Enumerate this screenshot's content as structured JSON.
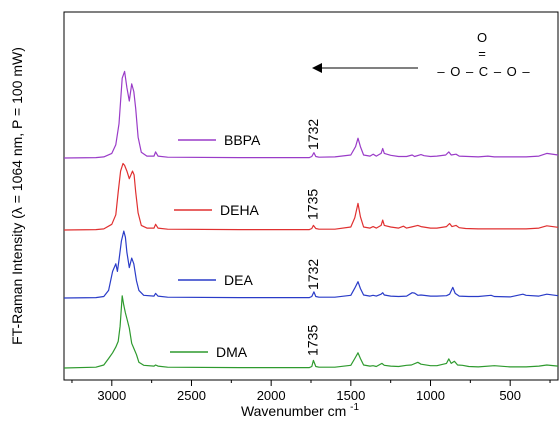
{
  "chart_data": {
    "type": "line",
    "xlabel": "Wavenumber cm",
    "xlabel_sup": "-1",
    "ylabel": "FT-Raman Intensity (λ = 1064 nm, P = 100 mW)",
    "xlim": [
      3300,
      200
    ],
    "x_reversed": true,
    "x_ticks": [
      3000,
      2500,
      2000,
      1500,
      1000,
      500
    ],
    "x_tick_labels": [
      "3000",
      "2500",
      "2000",
      "1500",
      "1000",
      "500"
    ],
    "y_tick_labels_shown": false,
    "grid": false,
    "legend": "inline",
    "colors": {
      "BBPA": "#9a3cc8",
      "DEHA": "#e03030",
      "DEA": "#2a3cc8",
      "DMA": "#2e9a2e"
    },
    "series": [
      {
        "name": "BBPA",
        "offset": 3,
        "points": [
          [
            3300,
            0
          ],
          [
            3100,
            0.01
          ],
          [
            3050,
            0.03
          ],
          [
            3000,
            0.12
          ],
          [
            2975,
            0.35
          ],
          [
            2955,
            0.9
          ],
          [
            2935,
            2.1
          ],
          [
            2920,
            2.28
          ],
          [
            2905,
            1.85
          ],
          [
            2890,
            1.5
          ],
          [
            2875,
            1.95
          ],
          [
            2862,
            1.75
          ],
          [
            2850,
            1.3
          ],
          [
            2835,
            0.55
          ],
          [
            2815,
            0.15
          ],
          [
            2780,
            0.05
          ],
          [
            2735,
            0.05
          ],
          [
            2725,
            0.16
          ],
          [
            2710,
            0.05
          ],
          [
            2650,
            0.02
          ],
          [
            2200,
            0.01
          ],
          [
            1760,
            0.01
          ],
          [
            1745,
            0.04
          ],
          [
            1732,
            0.14
          ],
          [
            1720,
            0.04
          ],
          [
            1700,
            0.02
          ],
          [
            1600,
            0.03
          ],
          [
            1500,
            0.08
          ],
          [
            1470,
            0.3
          ],
          [
            1455,
            0.52
          ],
          [
            1440,
            0.3
          ],
          [
            1420,
            0.08
          ],
          [
            1380,
            0.05
          ],
          [
            1360,
            0.1
          ],
          [
            1340,
            0.05
          ],
          [
            1310,
            0.12
          ],
          [
            1300,
            0.25
          ],
          [
            1290,
            0.12
          ],
          [
            1250,
            0.07
          ],
          [
            1200,
            0.04
          ],
          [
            1150,
            0.04
          ],
          [
            1115,
            0.08
          ],
          [
            1100,
            0.04
          ],
          [
            1060,
            0.09
          ],
          [
            1040,
            0.06
          ],
          [
            1000,
            0.04
          ],
          [
            960,
            0.05
          ],
          [
            905,
            0.08
          ],
          [
            885,
            0.16
          ],
          [
            870,
            0.08
          ],
          [
            840,
            0.1
          ],
          [
            820,
            0.05
          ],
          [
            760,
            0.04
          ],
          [
            700,
            0.03
          ],
          [
            640,
            0.05
          ],
          [
            600,
            0.03
          ],
          [
            400,
            0.03
          ],
          [
            320,
            0.05
          ],
          [
            270,
            0.12
          ],
          [
            200,
            0.08
          ]
        ]
      },
      {
        "name": "DEHA",
        "offset": 2,
        "points": [
          [
            3300,
            0
          ],
          [
            3100,
            0.01
          ],
          [
            3050,
            0.03
          ],
          [
            3000,
            0.15
          ],
          [
            2975,
            0.4
          ],
          [
            2960,
            1.0
          ],
          [
            2945,
            1.55
          ],
          [
            2930,
            1.75
          ],
          [
            2920,
            1.7
          ],
          [
            2905,
            1.55
          ],
          [
            2890,
            1.35
          ],
          [
            2870,
            1.55
          ],
          [
            2860,
            1.45
          ],
          [
            2850,
            1.0
          ],
          [
            2835,
            0.45
          ],
          [
            2815,
            0.12
          ],
          [
            2780,
            0.05
          ],
          [
            2735,
            0.05
          ],
          [
            2725,
            0.15
          ],
          [
            2710,
            0.05
          ],
          [
            2650,
            0.02
          ],
          [
            2200,
            0.01
          ],
          [
            1760,
            0.01
          ],
          [
            1745,
            0.04
          ],
          [
            1735,
            0.12
          ],
          [
            1720,
            0.04
          ],
          [
            1700,
            0.02
          ],
          [
            1600,
            0.02
          ],
          [
            1500,
            0.08
          ],
          [
            1475,
            0.32
          ],
          [
            1455,
            0.7
          ],
          [
            1440,
            0.35
          ],
          [
            1420,
            0.08
          ],
          [
            1380,
            0.05
          ],
          [
            1360,
            0.09
          ],
          [
            1340,
            0.05
          ],
          [
            1310,
            0.12
          ],
          [
            1300,
            0.26
          ],
          [
            1290,
            0.12
          ],
          [
            1250,
            0.08
          ],
          [
            1200,
            0.05
          ],
          [
            1170,
            0.1
          ],
          [
            1150,
            0.05
          ],
          [
            1120,
            0.08
          ],
          [
            1080,
            0.12
          ],
          [
            1060,
            0.09
          ],
          [
            1000,
            0.05
          ],
          [
            960,
            0.05
          ],
          [
            900,
            0.09
          ],
          [
            880,
            0.17
          ],
          [
            865,
            0.09
          ],
          [
            840,
            0.12
          ],
          [
            820,
            0.06
          ],
          [
            780,
            0.04
          ],
          [
            700,
            0.03
          ],
          [
            600,
            0.03
          ],
          [
            400,
            0.03
          ],
          [
            320,
            0.05
          ],
          [
            270,
            0.11
          ],
          [
            200,
            0.07
          ]
        ]
      },
      {
        "name": "DEA",
        "offset": 1,
        "points": [
          [
            3300,
            0
          ],
          [
            3100,
            0.01
          ],
          [
            3050,
            0.04
          ],
          [
            3020,
            0.2
          ],
          [
            2995,
            0.7
          ],
          [
            2975,
            0.9
          ],
          [
            2965,
            0.7
          ],
          [
            2955,
            1.0
          ],
          [
            2940,
            1.5
          ],
          [
            2925,
            1.76
          ],
          [
            2915,
            1.6
          ],
          [
            2905,
            1.2
          ],
          [
            2890,
            0.8
          ],
          [
            2875,
            1.05
          ],
          [
            2862,
            0.9
          ],
          [
            2845,
            0.45
          ],
          [
            2830,
            0.2
          ],
          [
            2800,
            0.07
          ],
          [
            2735,
            0.05
          ],
          [
            2725,
            0.12
          ],
          [
            2710,
            0.05
          ],
          [
            2650,
            0.02
          ],
          [
            2200,
            0.01
          ],
          [
            1760,
            0.01
          ],
          [
            1745,
            0.04
          ],
          [
            1732,
            0.16
          ],
          [
            1720,
            0.04
          ],
          [
            1700,
            0.02
          ],
          [
            1600,
            0.02
          ],
          [
            1500,
            0.07
          ],
          [
            1475,
            0.26
          ],
          [
            1455,
            0.43
          ],
          [
            1440,
            0.25
          ],
          [
            1420,
            0.08
          ],
          [
            1380,
            0.05
          ],
          [
            1360,
            0.07
          ],
          [
            1340,
            0.05
          ],
          [
            1310,
            0.1
          ],
          [
            1300,
            0.14
          ],
          [
            1290,
            0.08
          ],
          [
            1250,
            0.05
          ],
          [
            1200,
            0.04
          ],
          [
            1150,
            0.05
          ],
          [
            1115,
            0.14
          ],
          [
            1100,
            0.13
          ],
          [
            1080,
            0.07
          ],
          [
            1060,
            0.08
          ],
          [
            1000,
            0.05
          ],
          [
            960,
            0.05
          ],
          [
            900,
            0.06
          ],
          [
            880,
            0.1
          ],
          [
            860,
            0.28
          ],
          [
            845,
            0.12
          ],
          [
            820,
            0.05
          ],
          [
            760,
            0.04
          ],
          [
            700,
            0.04
          ],
          [
            620,
            0.07
          ],
          [
            600,
            0.04
          ],
          [
            500,
            0.03
          ],
          [
            420,
            0.1
          ],
          [
            400,
            0.07
          ],
          [
            320,
            0.05
          ],
          [
            270,
            0.1
          ],
          [
            200,
            0.06
          ]
        ]
      },
      {
        "name": "DMA",
        "offset": 0,
        "points": [
          [
            3300,
            0
          ],
          [
            3100,
            0.02
          ],
          [
            3050,
            0.08
          ],
          [
            3020,
            0.25
          ],
          [
            2995,
            0.4
          ],
          [
            2975,
            0.55
          ],
          [
            2960,
            0.7
          ],
          [
            2948,
            1.1
          ],
          [
            2935,
            1.9
          ],
          [
            2925,
            1.65
          ],
          [
            2915,
            1.45
          ],
          [
            2905,
            1.3
          ],
          [
            2890,
            1.05
          ],
          [
            2875,
            0.65
          ],
          [
            2860,
            0.5
          ],
          [
            2845,
            0.35
          ],
          [
            2830,
            0.15
          ],
          [
            2800,
            0.07
          ],
          [
            2735,
            0.05
          ],
          [
            2725,
            0.08
          ],
          [
            2710,
            0.05
          ],
          [
            2650,
            0.02
          ],
          [
            2200,
            0.01
          ],
          [
            1760,
            0.01
          ],
          [
            1745,
            0.04
          ],
          [
            1735,
            0.2
          ],
          [
            1720,
            0.04
          ],
          [
            1700,
            0.02
          ],
          [
            1600,
            0.02
          ],
          [
            1500,
            0.07
          ],
          [
            1475,
            0.25
          ],
          [
            1455,
            0.4
          ],
          [
            1440,
            0.25
          ],
          [
            1420,
            0.08
          ],
          [
            1380,
            0.05
          ],
          [
            1360,
            0.06
          ],
          [
            1340,
            0.04
          ],
          [
            1305,
            0.12
          ],
          [
            1290,
            0.07
          ],
          [
            1250,
            0.05
          ],
          [
            1200,
            0.04
          ],
          [
            1150,
            0.07
          ],
          [
            1120,
            0.08
          ],
          [
            1080,
            0.15
          ],
          [
            1060,
            0.1
          ],
          [
            1000,
            0.06
          ],
          [
            960,
            0.06
          ],
          [
            900,
            0.12
          ],
          [
            885,
            0.24
          ],
          [
            870,
            0.12
          ],
          [
            850,
            0.18
          ],
          [
            830,
            0.08
          ],
          [
            800,
            0.07
          ],
          [
            760,
            0.04
          ],
          [
            700,
            0.03
          ],
          [
            600,
            0.06
          ],
          [
            500,
            0.03
          ],
          [
            400,
            0.03
          ],
          [
            320,
            0.05
          ],
          [
            270,
            0.08
          ],
          [
            200,
            0.05
          ]
        ]
      }
    ],
    "annotations": [
      {
        "text": "1732",
        "x": 1732,
        "series": "BBPA",
        "orientation": "vertical"
      },
      {
        "text": "1735",
        "x": 1735,
        "series": "DEHA",
        "orientation": "vertical"
      },
      {
        "text": "1732",
        "x": 1732,
        "series": "DEA",
        "orientation": "vertical"
      },
      {
        "text": "1735",
        "x": 1735,
        "series": "DMA",
        "orientation": "vertical"
      }
    ],
    "formula": {
      "top": "O",
      "bond": "=",
      "chain": [
        "–",
        "O",
        "–",
        "C",
        "–",
        "O",
        "–"
      ]
    }
  }
}
